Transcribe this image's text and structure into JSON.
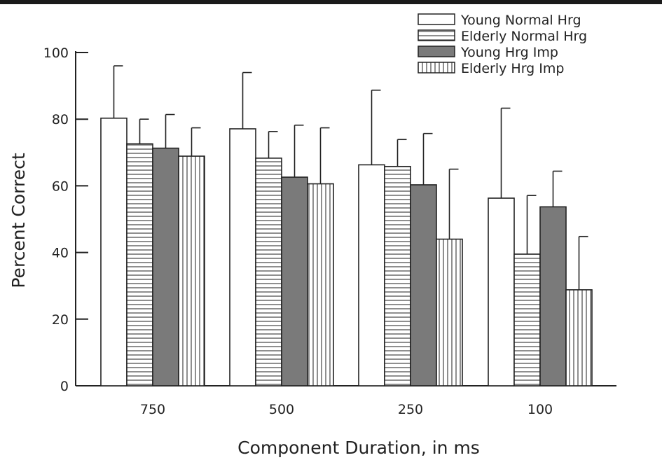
{
  "chart_data": {
    "type": "bar",
    "title": "",
    "xlabel": "Component Duration, in ms",
    "ylabel": "Percent Correct",
    "ylim": [
      0,
      100
    ],
    "yticks": [
      0,
      20,
      40,
      60,
      80,
      100
    ],
    "categories": [
      "750",
      "500",
      "250",
      "100"
    ],
    "grid": false,
    "legend_position": "top-right",
    "series": [
      {
        "name": "Young Normal Hrg",
        "pattern": "empty",
        "fill": "#ffffff",
        "values": [
          80.3,
          77.1,
          66.3,
          56.3
        ],
        "errors": [
          15.7,
          16.9,
          22.4,
          27.0
        ]
      },
      {
        "name": "Elderly Normal Hrg",
        "pattern": "horizontal-lines",
        "fill": "#ffffff",
        "values": [
          72.6,
          68.3,
          65.8,
          39.5
        ],
        "errors": [
          7.4,
          8.0,
          8.1,
          17.6
        ]
      },
      {
        "name": "Young Hrg Imp",
        "pattern": "solid",
        "fill": "#7a7a7a",
        "values": [
          71.3,
          62.6,
          60.3,
          53.7
        ],
        "errors": [
          10.1,
          15.6,
          15.4,
          10.7
        ]
      },
      {
        "name": "Elderly Hrg Imp",
        "pattern": "vertical-lines",
        "fill": "#ffffff",
        "values": [
          68.9,
          60.6,
          44.0,
          28.8
        ],
        "errors": [
          8.5,
          16.8,
          21.0,
          16.0
        ]
      }
    ]
  }
}
